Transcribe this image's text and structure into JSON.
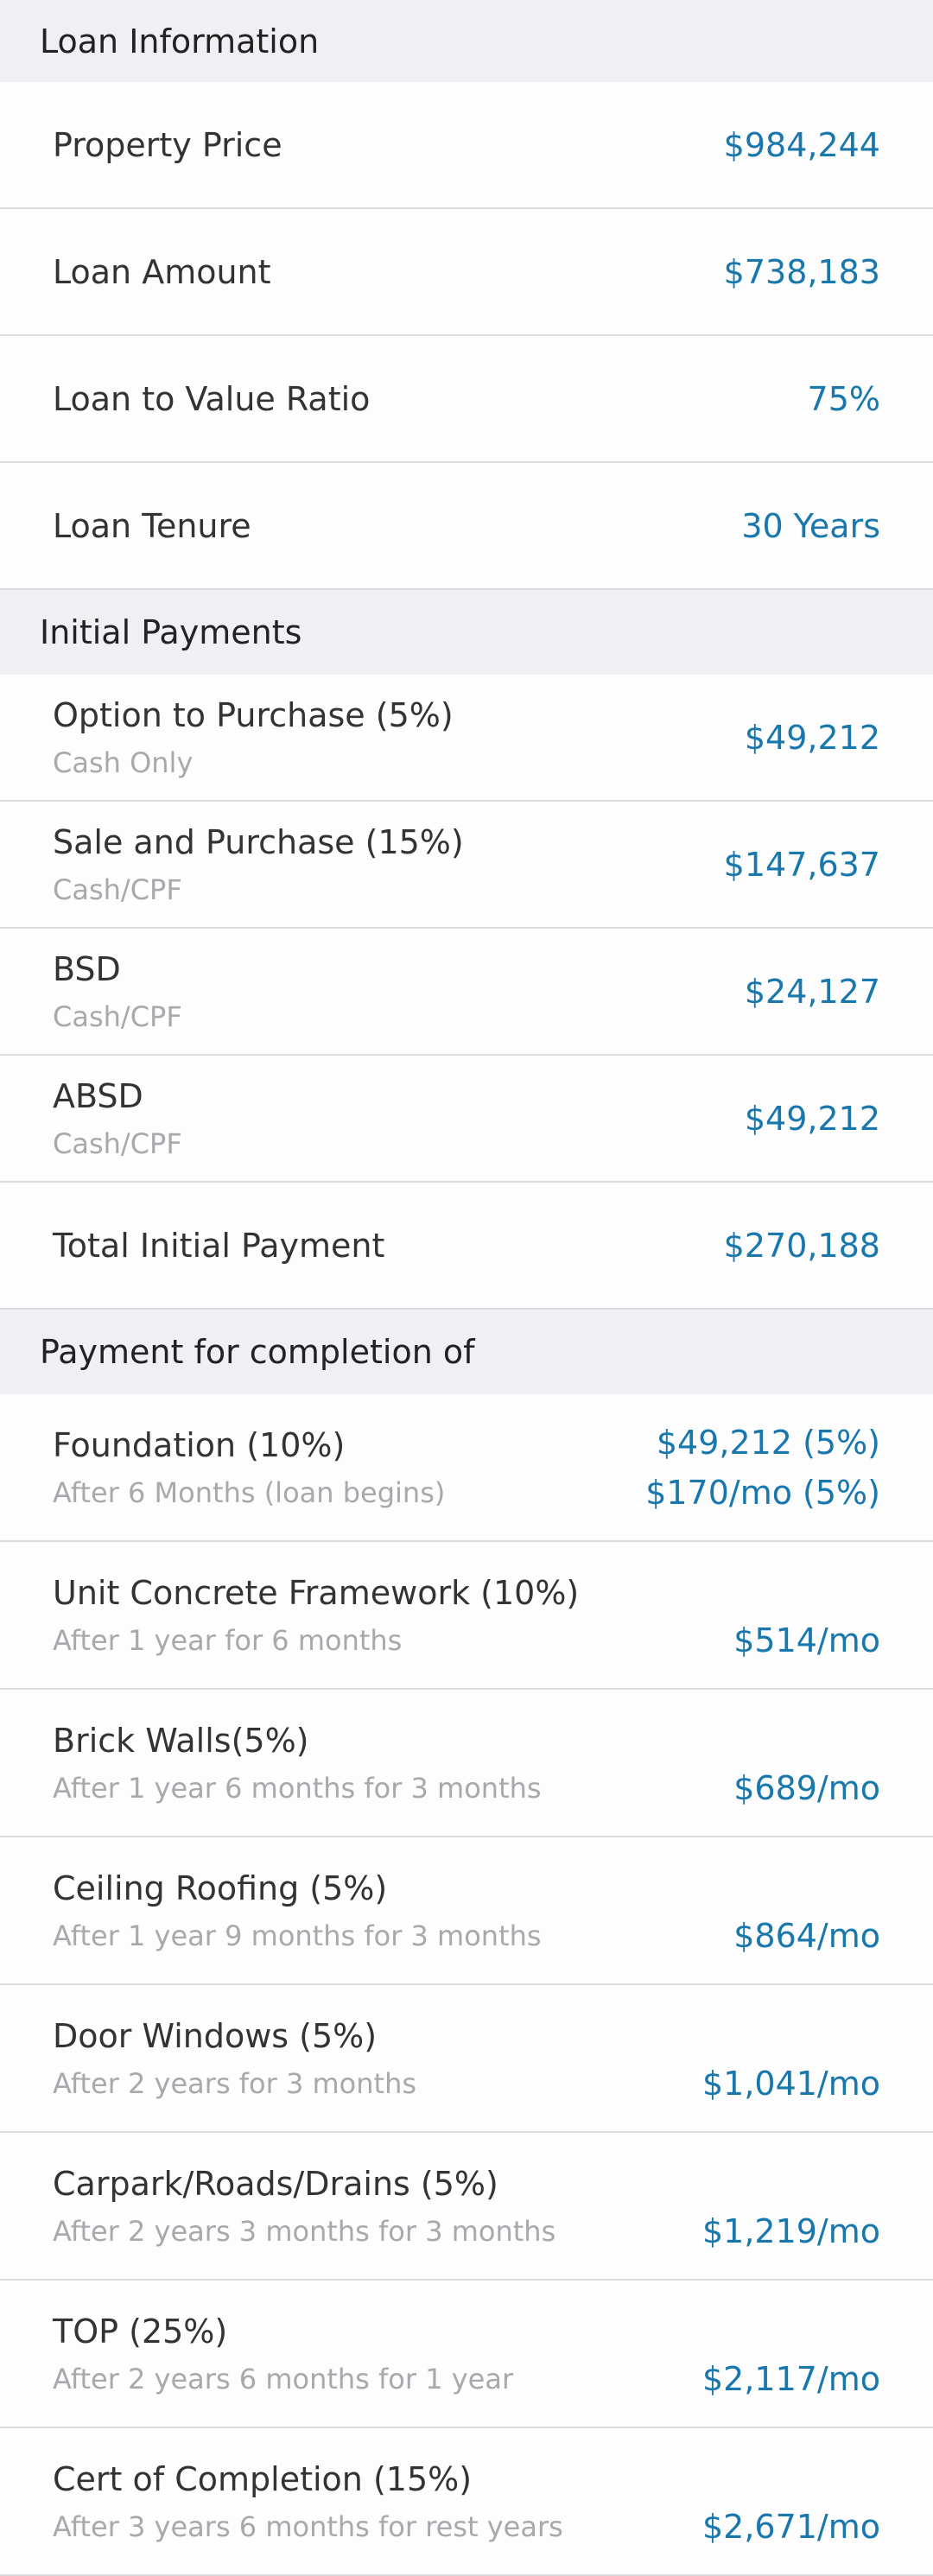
{
  "sections": [
    {
      "title": "Loan Information",
      "rows": [
        {
          "label": "Property Price",
          "value": "$984,244"
        },
        {
          "label": "Loan Amount",
          "value": "$738,183"
        },
        {
          "label": "Loan to Value Ratio",
          "value": "75%"
        },
        {
          "label": "Loan Tenure",
          "value": "30 Years"
        }
      ]
    },
    {
      "title": "Initial Payments",
      "rows": [
        {
          "label": "Option to Purchase (5%)",
          "note": "Cash Only",
          "value": "$49,212"
        },
        {
          "label": "Sale and Purchase (15%)",
          "note": "Cash/CPF",
          "value": "$147,637"
        },
        {
          "label": "BSD",
          "note": "Cash/CPF",
          "value": "$24,127"
        },
        {
          "label": "ABSD",
          "note": "Cash/CPF",
          "value": "$49,212"
        },
        {
          "label": "Total Initial Payment",
          "value": "$270,188"
        }
      ]
    },
    {
      "title": "Payment for completion of",
      "rows": [
        {
          "label": "Foundation (10%)",
          "note": "After 6 Months (loan begins)",
          "value": "$49,212 (5%)",
          "note_value": "$170/mo (5%)"
        },
        {
          "label": "Unit Concrete Framework (10%)",
          "note": "After 1 year for 6 months",
          "note_value": "$514/mo"
        },
        {
          "label": "Brick Walls(5%)",
          "note": "After 1 year 6 months for 3 months",
          "note_value": "$689/mo"
        },
        {
          "label": "Ceiling Roofing (5%)",
          "note": "After 1 year 9 months for 3 months",
          "note_value": "$864/mo"
        },
        {
          "label": "Door Windows (5%)",
          "note": "After 2 years for 3 months",
          "note_value": "$1,041/mo"
        },
        {
          "label": "Carpark/Roads/Drains (5%)",
          "note": "After 2 years 3 months for 3 months",
          "note_value": "$1,219/mo"
        },
        {
          "label": "TOP (25%)",
          "note": "After 2 years 6 months for 1 year",
          "note_value": "$2,117/mo"
        },
        {
          "label": "Cert of Completion (15%)",
          "note": "After 3 years 6 months for rest years",
          "note_value": "$2,671/mo"
        }
      ]
    }
  ]
}
